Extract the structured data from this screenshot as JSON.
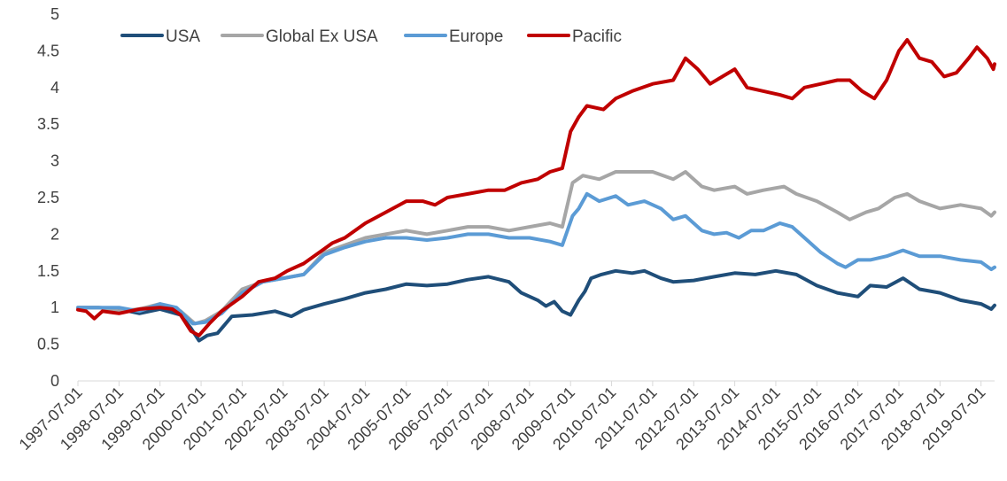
{
  "chart_data": {
    "type": "line",
    "title": "",
    "xlabel": "",
    "ylabel": "",
    "ylim": [
      0,
      5
    ],
    "yticks": [
      0,
      0.5,
      1,
      1.5,
      2,
      2.5,
      3,
      3.5,
      4,
      4.5,
      5
    ],
    "ytick_labels": [
      "0",
      "0.5",
      "1",
      "1.5",
      "2",
      "2.5",
      "3",
      "3.5",
      "4",
      "4.5",
      "5"
    ],
    "xlim": [
      1997.5,
      2019.83
    ],
    "x_tick_labels": [
      "1997-07-01",
      "1998-07-01",
      "1999-07-01",
      "2000-07-01",
      "2001-07-01",
      "2002-07-01",
      "2003-07-01",
      "2004-07-01",
      "2005-07-01",
      "2006-07-01",
      "2007-07-01",
      "2008-07-01",
      "2009-07-01",
      "2010-07-01",
      "2011-07-01",
      "2012-07-01",
      "2013-07-01",
      "2014-07-01",
      "2015-07-01",
      "2016-07-01",
      "2017-07-01",
      "2018-07-01",
      "2019-07-01"
    ],
    "grid": false,
    "legend_position": "top",
    "series": [
      {
        "name": "USA",
        "color": "#1f4e79",
        "points": [
          [
            1997.5,
            1.0
          ],
          [
            1998.0,
            1.0
          ],
          [
            1998.5,
            0.98
          ],
          [
            1999.0,
            0.92
          ],
          [
            1999.5,
            0.98
          ],
          [
            2000.0,
            0.9
          ],
          [
            2000.25,
            0.72
          ],
          [
            2000.45,
            0.55
          ],
          [
            2000.65,
            0.62
          ],
          [
            2000.9,
            0.65
          ],
          [
            2001.25,
            0.88
          ],
          [
            2001.75,
            0.9
          ],
          [
            2002.3,
            0.95
          ],
          [
            2002.7,
            0.88
          ],
          [
            2003.0,
            0.97
          ],
          [
            2003.5,
            1.05
          ],
          [
            2004.0,
            1.12
          ],
          [
            2004.5,
            1.2
          ],
          [
            2005.0,
            1.25
          ],
          [
            2005.5,
            1.32
          ],
          [
            2006.0,
            1.3
          ],
          [
            2006.5,
            1.32
          ],
          [
            2007.0,
            1.38
          ],
          [
            2007.5,
            1.42
          ],
          [
            2008.0,
            1.35
          ],
          [
            2008.3,
            1.2
          ],
          [
            2008.7,
            1.1
          ],
          [
            2008.9,
            1.02
          ],
          [
            2009.1,
            1.08
          ],
          [
            2009.3,
            0.95
          ],
          [
            2009.5,
            0.9
          ],
          [
            2009.7,
            1.1
          ],
          [
            2009.85,
            1.22
          ],
          [
            2010.0,
            1.4
          ],
          [
            2010.25,
            1.45
          ],
          [
            2010.6,
            1.5
          ],
          [
            2011.0,
            1.47
          ],
          [
            2011.3,
            1.5
          ],
          [
            2011.7,
            1.4
          ],
          [
            2012.0,
            1.35
          ],
          [
            2012.5,
            1.37
          ],
          [
            2013.0,
            1.42
          ],
          [
            2013.5,
            1.47
          ],
          [
            2014.0,
            1.45
          ],
          [
            2014.5,
            1.5
          ],
          [
            2015.0,
            1.45
          ],
          [
            2015.5,
            1.3
          ],
          [
            2016.0,
            1.2
          ],
          [
            2016.5,
            1.15
          ],
          [
            2016.8,
            1.3
          ],
          [
            2017.2,
            1.28
          ],
          [
            2017.6,
            1.4
          ],
          [
            2018.0,
            1.25
          ],
          [
            2018.5,
            1.2
          ],
          [
            2019.0,
            1.1
          ],
          [
            2019.5,
            1.05
          ],
          [
            2019.75,
            0.98
          ],
          [
            2019.83,
            1.03
          ]
        ]
      },
      {
        "name": "Global Ex USA",
        "color": "#a6a6a6",
        "points": [
          [
            1997.5,
            1.0
          ],
          [
            1998.0,
            1.0
          ],
          [
            1998.5,
            0.95
          ],
          [
            1999.0,
            0.98
          ],
          [
            1999.5,
            1.05
          ],
          [
            2000.0,
            0.95
          ],
          [
            2000.35,
            0.78
          ],
          [
            2000.6,
            0.82
          ],
          [
            2001.0,
            0.95
          ],
          [
            2001.5,
            1.25
          ],
          [
            2002.0,
            1.35
          ],
          [
            2002.5,
            1.4
          ],
          [
            2003.0,
            1.45
          ],
          [
            2003.5,
            1.75
          ],
          [
            2004.0,
            1.85
          ],
          [
            2004.5,
            1.95
          ],
          [
            2005.0,
            2.0
          ],
          [
            2005.5,
            2.05
          ],
          [
            2006.0,
            2.0
          ],
          [
            2006.5,
            2.05
          ],
          [
            2007.0,
            2.1
          ],
          [
            2007.5,
            2.1
          ],
          [
            2008.0,
            2.05
          ],
          [
            2008.5,
            2.1
          ],
          [
            2009.0,
            2.15
          ],
          [
            2009.3,
            2.1
          ],
          [
            2009.55,
            2.7
          ],
          [
            2009.8,
            2.8
          ],
          [
            2010.2,
            2.75
          ],
          [
            2010.6,
            2.85
          ],
          [
            2011.0,
            2.85
          ],
          [
            2011.5,
            2.85
          ],
          [
            2012.0,
            2.75
          ],
          [
            2012.3,
            2.85
          ],
          [
            2012.7,
            2.65
          ],
          [
            2013.0,
            2.6
          ],
          [
            2013.5,
            2.65
          ],
          [
            2013.8,
            2.55
          ],
          [
            2014.2,
            2.6
          ],
          [
            2014.7,
            2.65
          ],
          [
            2015.0,
            2.55
          ],
          [
            2015.5,
            2.45
          ],
          [
            2016.0,
            2.3
          ],
          [
            2016.3,
            2.2
          ],
          [
            2016.7,
            2.3
          ],
          [
            2017.0,
            2.35
          ],
          [
            2017.4,
            2.5
          ],
          [
            2017.7,
            2.55
          ],
          [
            2018.0,
            2.45
          ],
          [
            2018.5,
            2.35
          ],
          [
            2019.0,
            2.4
          ],
          [
            2019.5,
            2.35
          ],
          [
            2019.75,
            2.25
          ],
          [
            2019.83,
            2.3
          ]
        ]
      },
      {
        "name": "Europe",
        "color": "#5b9bd5",
        "points": [
          [
            1997.5,
            1.0
          ],
          [
            1998.0,
            1.0
          ],
          [
            1998.5,
            1.0
          ],
          [
            1999.0,
            0.95
          ],
          [
            1999.5,
            1.05
          ],
          [
            1999.9,
            1.0
          ],
          [
            2000.3,
            0.78
          ],
          [
            2000.6,
            0.8
          ],
          [
            2001.0,
            0.92
          ],
          [
            2001.5,
            1.2
          ],
          [
            2002.0,
            1.35
          ],
          [
            2002.5,
            1.4
          ],
          [
            2003.0,
            1.45
          ],
          [
            2003.5,
            1.72
          ],
          [
            2004.0,
            1.82
          ],
          [
            2004.5,
            1.9
          ],
          [
            2005.0,
            1.95
          ],
          [
            2005.5,
            1.95
          ],
          [
            2006.0,
            1.92
          ],
          [
            2006.5,
            1.95
          ],
          [
            2007.0,
            2.0
          ],
          [
            2007.5,
            2.0
          ],
          [
            2008.0,
            1.95
          ],
          [
            2008.5,
            1.95
          ],
          [
            2009.0,
            1.9
          ],
          [
            2009.3,
            1.85
          ],
          [
            2009.55,
            2.25
          ],
          [
            2009.7,
            2.35
          ],
          [
            2009.9,
            2.55
          ],
          [
            2010.2,
            2.45
          ],
          [
            2010.6,
            2.52
          ],
          [
            2010.9,
            2.4
          ],
          [
            2011.3,
            2.45
          ],
          [
            2011.7,
            2.35
          ],
          [
            2012.0,
            2.2
          ],
          [
            2012.3,
            2.25
          ],
          [
            2012.7,
            2.05
          ],
          [
            2013.0,
            2.0
          ],
          [
            2013.3,
            2.02
          ],
          [
            2013.6,
            1.95
          ],
          [
            2013.9,
            2.05
          ],
          [
            2014.2,
            2.05
          ],
          [
            2014.6,
            2.15
          ],
          [
            2014.9,
            2.1
          ],
          [
            2015.2,
            1.95
          ],
          [
            2015.6,
            1.75
          ],
          [
            2016.0,
            1.6
          ],
          [
            2016.2,
            1.55
          ],
          [
            2016.5,
            1.65
          ],
          [
            2016.8,
            1.65
          ],
          [
            2017.2,
            1.7
          ],
          [
            2017.6,
            1.78
          ],
          [
            2018.0,
            1.7
          ],
          [
            2018.5,
            1.7
          ],
          [
            2019.0,
            1.65
          ],
          [
            2019.5,
            1.62
          ],
          [
            2019.75,
            1.52
          ],
          [
            2019.83,
            1.55
          ]
        ]
      },
      {
        "name": "Pacific",
        "color": "#c00000",
        "points": [
          [
            1997.5,
            0.97
          ],
          [
            1997.7,
            0.95
          ],
          [
            1997.9,
            0.85
          ],
          [
            1998.1,
            0.95
          ],
          [
            1998.5,
            0.92
          ],
          [
            1999.0,
            0.98
          ],
          [
            1999.5,
            1.0
          ],
          [
            1999.8,
            0.98
          ],
          [
            2000.0,
            0.9
          ],
          [
            2000.25,
            0.68
          ],
          [
            2000.45,
            0.62
          ],
          [
            2000.7,
            0.78
          ],
          [
            2001.0,
            0.95
          ],
          [
            2001.5,
            1.15
          ],
          [
            2001.9,
            1.35
          ],
          [
            2002.3,
            1.4
          ],
          [
            2002.6,
            1.5
          ],
          [
            2003.0,
            1.6
          ],
          [
            2003.5,
            1.8
          ],
          [
            2003.7,
            1.88
          ],
          [
            2004.0,
            1.95
          ],
          [
            2004.5,
            2.15
          ],
          [
            2005.0,
            2.3
          ],
          [
            2005.5,
            2.45
          ],
          [
            2005.9,
            2.45
          ],
          [
            2006.2,
            2.4
          ],
          [
            2006.5,
            2.5
          ],
          [
            2007.0,
            2.55
          ],
          [
            2007.5,
            2.6
          ],
          [
            2007.9,
            2.6
          ],
          [
            2008.3,
            2.7
          ],
          [
            2008.7,
            2.75
          ],
          [
            2009.0,
            2.85
          ],
          [
            2009.3,
            2.9
          ],
          [
            2009.5,
            3.4
          ],
          [
            2009.7,
            3.6
          ],
          [
            2009.9,
            3.75
          ],
          [
            2010.3,
            3.7
          ],
          [
            2010.6,
            3.85
          ],
          [
            2011.0,
            3.95
          ],
          [
            2011.5,
            4.05
          ],
          [
            2012.0,
            4.1
          ],
          [
            2012.3,
            4.4
          ],
          [
            2012.6,
            4.25
          ],
          [
            2012.9,
            4.05
          ],
          [
            2013.2,
            4.15
          ],
          [
            2013.5,
            4.25
          ],
          [
            2013.8,
            4.0
          ],
          [
            2014.2,
            3.95
          ],
          [
            2014.6,
            3.9
          ],
          [
            2014.9,
            3.85
          ],
          [
            2015.2,
            4.0
          ],
          [
            2015.6,
            4.05
          ],
          [
            2016.0,
            4.1
          ],
          [
            2016.3,
            4.1
          ],
          [
            2016.6,
            3.95
          ],
          [
            2016.9,
            3.85
          ],
          [
            2017.2,
            4.1
          ],
          [
            2017.5,
            4.5
          ],
          [
            2017.7,
            4.65
          ],
          [
            2018.0,
            4.4
          ],
          [
            2018.3,
            4.35
          ],
          [
            2018.6,
            4.15
          ],
          [
            2018.9,
            4.2
          ],
          [
            2019.2,
            4.4
          ],
          [
            2019.4,
            4.55
          ],
          [
            2019.65,
            4.4
          ],
          [
            2019.8,
            4.25
          ],
          [
            2019.83,
            4.32
          ]
        ]
      }
    ]
  }
}
